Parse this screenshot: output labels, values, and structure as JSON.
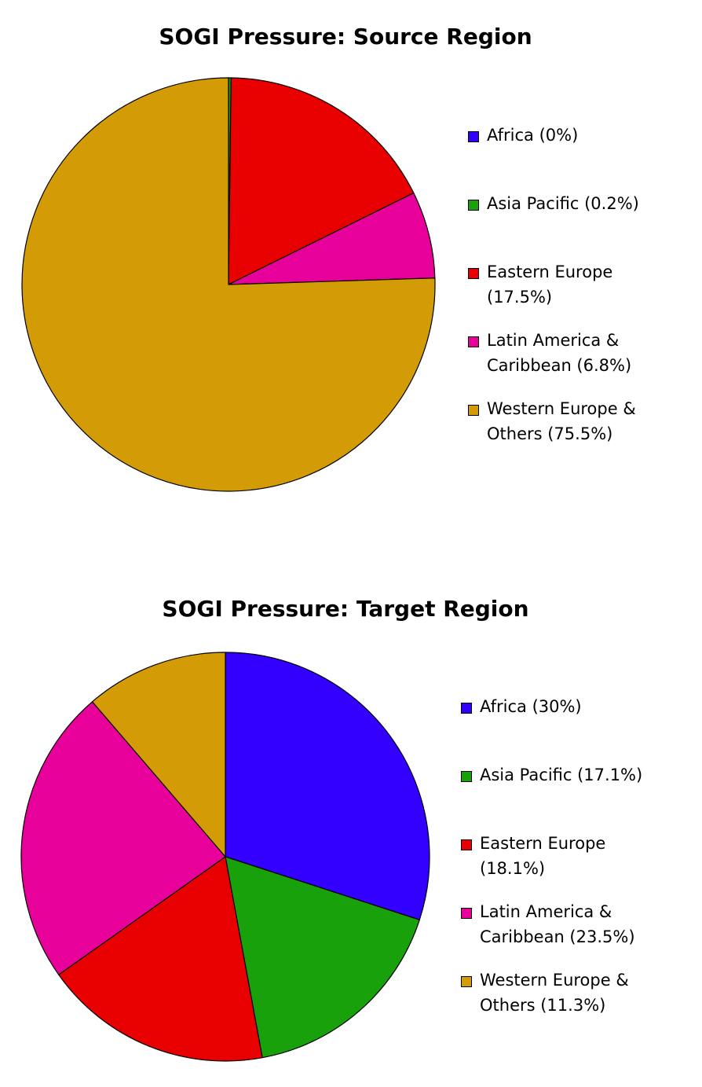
{
  "chart_data": [
    {
      "type": "pie",
      "title": "SOGI Pressure: Source Region",
      "slices": [
        {
          "label": "Africa (0%)",
          "value": 0,
          "color": "#3300ff"
        },
        {
          "label": "Asia Pacific (0.2%)",
          "value": 0.2,
          "color": "#18a10b"
        },
        {
          "label": "Eastern Europe (17.5%)",
          "value": 17.5,
          "color": "#e80000"
        },
        {
          "label": "Latin America & Caribbean (6.8%)",
          "value": 6.8,
          "color": "#e8009a"
        },
        {
          "label": "Western Europe & Others (75.5%)",
          "value": 75.5,
          "color": "#d39b06"
        }
      ],
      "legend_position": "right"
    },
    {
      "type": "pie",
      "title": "SOGI Pressure: Target Region",
      "slices": [
        {
          "label": "Africa (30%)",
          "value": 30,
          "color": "#3300ff"
        },
        {
          "label": "Asia Pacific (17.1%)",
          "value": 17.1,
          "color": "#18a10b"
        },
        {
          "label": "Eastern Europe (18.1%)",
          "value": 18.1,
          "color": "#e80000"
        },
        {
          "label": "Latin America & Caribbean (23.5%)",
          "value": 23.5,
          "color": "#e8009a"
        },
        {
          "label": "Western Europe & Others (11.3%)",
          "value": 11.3,
          "color": "#d39b06"
        }
      ],
      "legend_position": "right"
    }
  ]
}
